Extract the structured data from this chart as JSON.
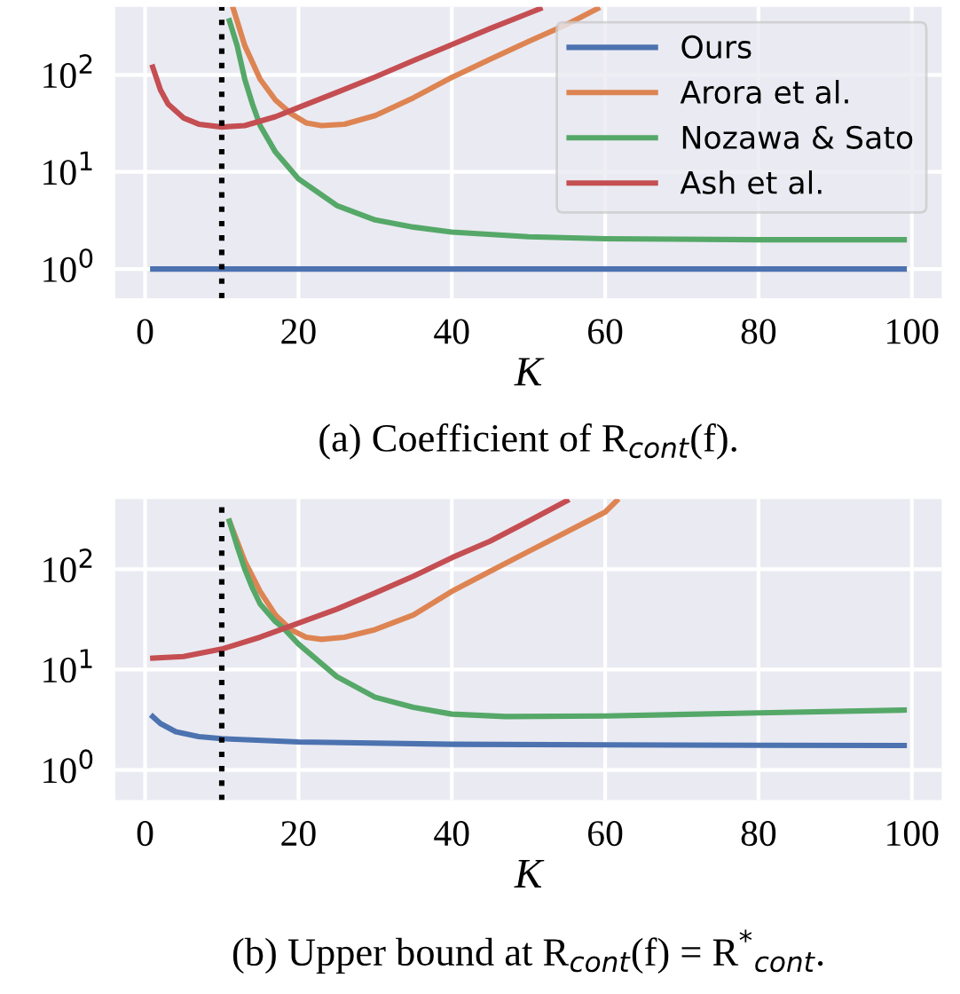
{
  "chart_data": [
    {
      "type": "line",
      "title": "(a) Coefficient of R$_{cont}$(f).",
      "xlabel": "K",
      "log": "y",
      "grid": true,
      "legend": "top right",
      "xlim": [
        -3.9,
        103.9
      ],
      "xticks": [
        0,
        20,
        40,
        60,
        80,
        100
      ],
      "ylim": [
        0.5,
        500
      ],
      "yticks": [
        {
          "value": 1,
          "label": "10$^{0}$"
        },
        {
          "value": 10,
          "label": "10$^{1}$"
        },
        {
          "value": 100,
          "label": "10$^{2}$"
        }
      ],
      "ref_lines": [
        {
          "axis": "x",
          "value": 10,
          "color": "#000000",
          "line_style": "dotted"
        }
      ],
      "series": [
        {
          "name": "Ours",
          "color": "#4c72b0",
          "x": [
            1,
            10,
            20,
            40,
            60,
            80,
            99
          ],
          "values": [
            1,
            1,
            1,
            1,
            1,
            1,
            1
          ]
        },
        {
          "name": "Arora et al.",
          "color": "#dd8452",
          "x": [
            11.5,
            13,
            15,
            17,
            19,
            21,
            23,
            26,
            30,
            35,
            40,
            45,
            50,
            55,
            59
          ],
          "values": [
            480,
            200,
            90,
            55,
            40,
            32,
            30,
            31,
            38,
            58,
            94,
            145,
            220,
            330,
            480
          ]
        },
        {
          "name": "Nozawa & Sato",
          "color": "#55a868",
          "x": [
            11,
            12,
            13,
            14,
            15,
            17,
            20,
            25,
            30,
            35,
            40,
            50,
            60,
            80,
            99
          ],
          "values": [
            360,
            200,
            90,
            50,
            30,
            16,
            8.5,
            4.5,
            3.2,
            2.7,
            2.4,
            2.15,
            2.05,
            2.0,
            2.0
          ]
        },
        {
          "name": "Ash et al.",
          "color": "#c44e52",
          "x": [
            1,
            2,
            3,
            5,
            7,
            10,
            13,
            17,
            20,
            25,
            30,
            35,
            40,
            45,
            50,
            51.5
          ],
          "values": [
            120,
            70,
            50,
            36,
            31,
            29,
            30,
            37,
            46,
            66,
            95,
            140,
            205,
            300,
            430,
            480
          ]
        }
      ]
    },
    {
      "type": "line",
      "title": "(b) Upper bound at R$_{cont}$(f) = R$^{*}$$_{cont}$.",
      "xlabel": "K",
      "log": "y",
      "grid": true,
      "xlim": [
        -3.9,
        103.9
      ],
      "xticks": [
        0,
        20,
        40,
        60,
        80,
        100
      ],
      "ylim": [
        0.5,
        500
      ],
      "yticks": [
        {
          "value": 1,
          "label": "10$^{0}$"
        },
        {
          "value": 10,
          "label": "10$^{1}$"
        },
        {
          "value": 100,
          "label": "10$^{2}$"
        }
      ],
      "ref_lines": [
        {
          "axis": "x",
          "value": 10,
          "color": "#000000",
          "line_style": "dotted"
        }
      ],
      "series": [
        {
          "color": "#4c72b0",
          "x": [
            1,
            2,
            4,
            7,
            10,
            20,
            40,
            60,
            80,
            99
          ],
          "values": [
            3.4,
            2.9,
            2.4,
            2.15,
            2.05,
            1.9,
            1.8,
            1.78,
            1.76,
            1.75
          ]
        },
        {
          "color": "#dd8452",
          "x": [
            11,
            13,
            15,
            17,
            19,
            21,
            23,
            26,
            30,
            35,
            40,
            45,
            50,
            55,
            60,
            61.5
          ],
          "values": [
            300,
            120,
            60,
            35,
            25,
            21,
            20,
            21,
            25,
            35,
            60,
            95,
            150,
            235,
            370,
            480
          ]
        },
        {
          "color": "#55a868",
          "x": [
            11,
            12,
            13,
            14,
            15,
            17,
            18,
            20,
            25,
            30,
            35,
            40,
            47,
            60,
            80,
            99
          ],
          "values": [
            300,
            170,
            100,
            65,
            45,
            30,
            26,
            18,
            8.5,
            5.3,
            4.2,
            3.6,
            3.4,
            3.45,
            3.7,
            3.95
          ]
        },
        {
          "color": "#c44e52",
          "x": [
            1,
            5,
            10,
            15,
            20,
            25,
            30,
            35,
            40,
            45,
            50,
            55
          ],
          "values": [
            13,
            13.5,
            16,
            21,
            29,
            40,
            58,
            85,
            130,
            190,
            300,
            480
          ]
        }
      ]
    }
  ]
}
